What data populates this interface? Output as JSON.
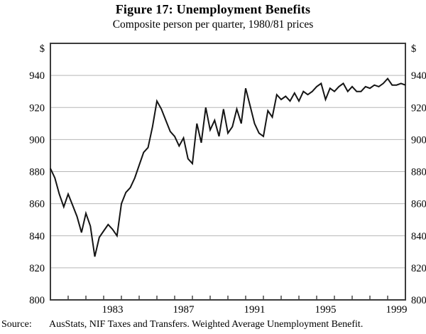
{
  "title": "Figure 17: Unemployment Benefits",
  "subtitle": "Composite person per quarter, 1980/81 prices",
  "source": {
    "label": "Source:",
    "text": "AusStats, NIF Taxes and Transfers. Weighted Average Unemployment Benefit."
  },
  "chart_data": {
    "type": "line",
    "title": "Figure 17: Unemployment Benefits",
    "subtitle": "Composite person per quarter, 1980/81 prices",
    "unit_label": "$",
    "ylabel": "$ per composite person per quarter (1980/81 prices)",
    "ylim": [
      800,
      960
    ],
    "y_axis_values": [
      940,
      920,
      900,
      880,
      860,
      840,
      820,
      800
    ],
    "y_gridlines": [
      820,
      840,
      860,
      880,
      900,
      920,
      940
    ],
    "grid_on": true,
    "x_start_year": 1980,
    "x_end_year": 2000,
    "x_frequency": "quarterly",
    "x_tick_years_labeled": [
      1983,
      1987,
      1991,
      1995,
      1999
    ],
    "legend_position": "none",
    "line_color": "#141414",
    "grid_color": "#b6b6b6",
    "frame_color": "#3c3c3c",
    "series": [
      {
        "name": "Weighted average unemployment benefit",
        "values": [
          882,
          876,
          866,
          858,
          866,
          859,
          852,
          842,
          854,
          846,
          827,
          839,
          843,
          847,
          844,
          840,
          860,
          867,
          870,
          876,
          884,
          892,
          895,
          908,
          924,
          919,
          912,
          905,
          902,
          896,
          901,
          888,
          885,
          910,
          898,
          920,
          906,
          912,
          902,
          919,
          904,
          908,
          919,
          910,
          932,
          921,
          910,
          904,
          902,
          918,
          914,
          928,
          925,
          927,
          924,
          929,
          924,
          930,
          928,
          930,
          933,
          935,
          925,
          932,
          930,
          933,
          935,
          930,
          933,
          930,
          930,
          933,
          932,
          934,
          933,
          935,
          938,
          934,
          934,
          935,
          934
        ]
      }
    ]
  }
}
